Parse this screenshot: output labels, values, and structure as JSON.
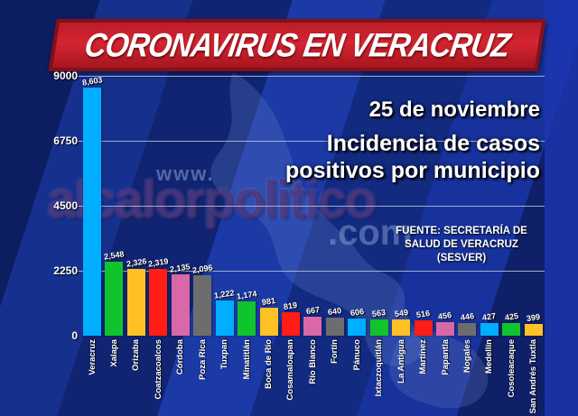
{
  "banner": {
    "title": "CORONAVIRUS EN VERACRUZ"
  },
  "subtitle": {
    "date": "25 de noviembre",
    "line1": "Incidencia de casos",
    "line2": "positivos por municipio"
  },
  "source": {
    "line1": "FUENTE: SECRETARÍA DE",
    "line2": "SALUD DE VERACRUZ (SESVER)"
  },
  "watermark": {
    "www": "www.",
    "name": "alcalorpolitico",
    "com": ".com"
  },
  "chart_data": {
    "type": "bar",
    "title": "Incidencia de casos positivos por municipio",
    "date_label": "25 de noviembre",
    "ylim": [
      0,
      9000
    ],
    "yticks": [
      9000,
      6750,
      4500,
      2250,
      0
    ],
    "grid": true,
    "legend": "none",
    "categories": [
      "Veracruz",
      "Xalapa",
      "Orizaba",
      "Coatzacoalcos",
      "Córdoba",
      "Poza Rica",
      "Tuxpan",
      "Minatitlán",
      "Boca de Río",
      "Cosamaloapan",
      "Río Blanco",
      "Fortín",
      "Pánuco",
      "Ixtaczoquitlán",
      "La Antigua",
      "Martínez",
      "Papantla",
      "Nogales",
      "Medellín",
      "Cosoleacaque",
      "San Andrés Tuxtla"
    ],
    "values": [
      8603,
      2548,
      2326,
      2319,
      2135,
      2096,
      1222,
      1174,
      981,
      819,
      667,
      640,
      606,
      563,
      549,
      516,
      456,
      446,
      427,
      425,
      399
    ],
    "value_labels": [
      "8,603",
      "2,548",
      "2,326",
      "2,319",
      "2,135",
      "2,096",
      "1,222",
      "1,174",
      "981",
      "819",
      "667",
      "640",
      "606",
      "563",
      "549",
      "516",
      "456",
      "446",
      "427",
      "425",
      "399"
    ],
    "bar_color_cycle": [
      "#00aeff",
      "#10c42e",
      "#ffc125",
      "#ff1d15",
      "#d968a8",
      "#6d6d6d"
    ]
  },
  "colors": {
    "background_navy": "#0d1d62",
    "background_stripe": "#1b3aa6",
    "banner_red": "#d42431",
    "banner_border": "#84101a",
    "text_white": "#ffffff",
    "gridline": "#c3cdde"
  }
}
